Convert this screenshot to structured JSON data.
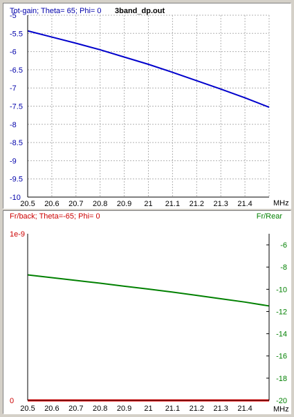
{
  "chart_data": [
    {
      "type": "line",
      "title": "3band_dp.out",
      "ylabel": "Tot-gain; Theta= 65; Phi= 0",
      "xlabel": "MHz",
      "xlim": [
        20.5,
        21.5
      ],
      "ylim": [
        -10,
        -5
      ],
      "x_ticks": [
        "20.5",
        "20.6",
        "20.7",
        "20.8",
        "20.9",
        "21",
        "21.1",
        "21.2",
        "21.3",
        "21.4"
      ],
      "y_ticks": [
        "-5",
        "-5.5",
        "-6",
        "-6.5",
        "-7",
        "-7.5",
        "-8",
        "-8.5",
        "-9",
        "-9.5",
        "-10"
      ],
      "grid": true,
      "colors": {
        "axis_label": "#0000aa",
        "series": "#0000cc",
        "grid": "#b0b0b0"
      },
      "series": [
        {
          "name": "",
          "x": [
            20.5,
            20.6,
            20.7,
            20.8,
            20.9,
            21.0,
            21.1,
            21.2,
            21.3,
            21.4,
            21.5
          ],
          "values": [
            -5.43,
            -5.6,
            -5.77,
            -5.95,
            -6.15,
            -6.35,
            -6.57,
            -6.8,
            -7.03,
            -7.27,
            -7.53
          ]
        }
      ]
    },
    {
      "type": "line",
      "ylabel": "Fr/back; Theta=-65; Phi= 0",
      "y2label": "Fr/Rear",
      "xlabel": "MHz",
      "xlim": [
        20.5,
        21.5
      ],
      "ylim": [
        0,
        1
      ],
      "y2lim": [
        -20,
        -5
      ],
      "x_ticks": [
        "20.5",
        "20.6",
        "20.7",
        "20.8",
        "20.9",
        "21",
        "21.1",
        "21.2",
        "21.3",
        "21.4"
      ],
      "y_ticks": [
        "1e-9",
        "0"
      ],
      "y2_ticks": [
        "-6",
        "-8",
        "-10",
        "-12",
        "-14",
        "-16",
        "-18",
        "-20"
      ],
      "grid": false,
      "colors": {
        "axis_label": "#cc0000",
        "axis2_label": "#008000",
        "fr_back": "#ff0000",
        "fr_rear": "#008000"
      },
      "series": [
        {
          "name": "",
          "axis": "left",
          "x": [
            20.5,
            21.5
          ],
          "values": [
            0,
            0
          ]
        },
        {
          "name": "",
          "axis": "right",
          "x": [
            20.5,
            20.6,
            20.7,
            20.8,
            20.9,
            21.0,
            21.1,
            21.2,
            21.3,
            21.4,
            21.5
          ],
          "values": [
            -8.7,
            -8.95,
            -9.2,
            -9.45,
            -9.72,
            -9.98,
            -10.25,
            -10.55,
            -10.85,
            -11.15,
            -11.5
          ]
        }
      ]
    }
  ]
}
